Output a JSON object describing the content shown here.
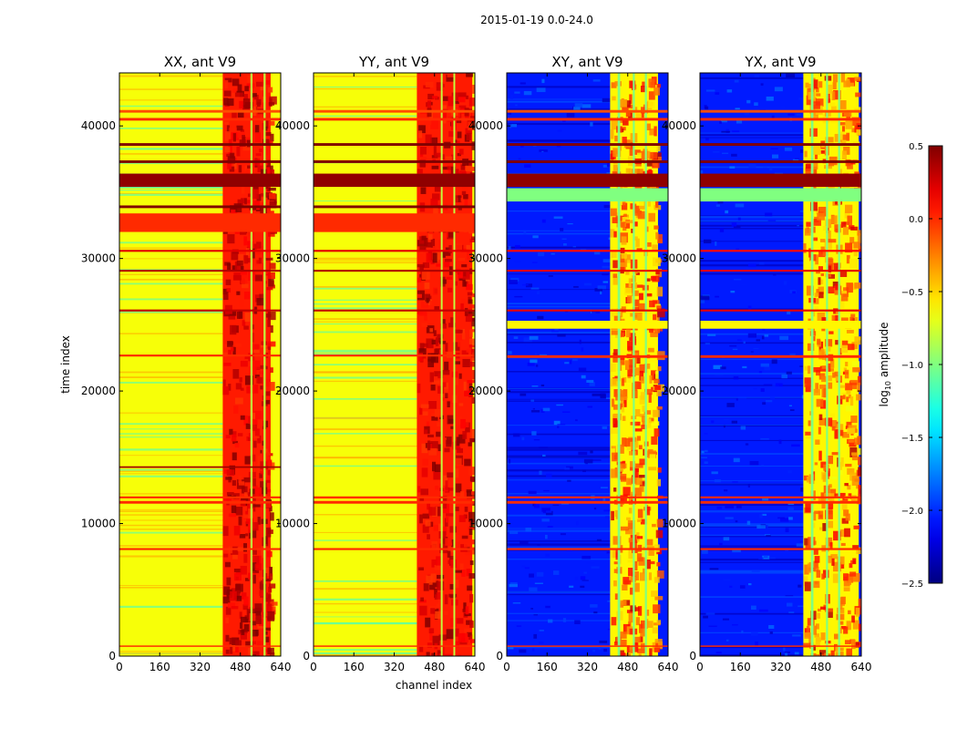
{
  "figure_title": "2015-01-19 0.0-24.0",
  "colors": {
    "spine": "#000000",
    "background": "#ffffff"
  },
  "chart_data": {
    "type": "heatmap",
    "colormap": "jet",
    "colorbar": {
      "label": "log10 amplitude",
      "label_base": "log",
      "label_sub": "10",
      "label_rest": " amplitude",
      "range": [
        -2.5,
        0.5
      ],
      "ticks": [
        0.5,
        0.0,
        -0.5,
        -1.0,
        -1.5,
        -2.0,
        -2.5
      ],
      "tick_labels": [
        "0.5",
        "0.0",
        "−0.5",
        "−1.0",
        "−1.5",
        "−2.0",
        "−2.5"
      ]
    },
    "xlabel": "channel index",
    "ylabel": "time index",
    "xlim": [
      0,
      640
    ],
    "ylim": [
      0,
      44000
    ],
    "xticks": [
      0,
      160,
      320,
      480,
      640
    ],
    "xtick_labels": [
      "0",
      "160",
      "320",
      "480",
      "640"
    ],
    "yticks": [
      0,
      10000,
      20000,
      30000,
      40000
    ],
    "ytick_labels": [
      "0",
      "10000",
      "20000",
      "30000",
      "40000"
    ],
    "panels": [
      {
        "title": "XX, ant V9",
        "base_level": -0.65,
        "active_channels": [
          410,
          600
        ],
        "active_level": 0.05,
        "gaps": [
          [
            520,
            528
          ],
          [
            572,
            580
          ]
        ],
        "cross_pol": false,
        "bands": [
          {
            "time": [
              32000,
              33400
            ],
            "level": 0.0
          },
          {
            "time": [
              35400,
              36400
            ],
            "level": 0.45
          },
          {
            "time": [
              37200,
              37400
            ],
            "level": 0.5
          },
          {
            "time": [
              38500,
              38700
            ],
            "level": 0.5
          },
          {
            "time": [
              33800,
              34000
            ],
            "level": 0.5
          },
          {
            "time": [
              40400,
              40600
            ],
            "level": 0.0
          },
          {
            "time": [
              41000,
              41200
            ],
            "level": -0.1
          },
          {
            "time": [
              11500,
              11700
            ],
            "level": 0.0
          },
          {
            "time": [
              11900,
              12050
            ],
            "level": 0.0
          },
          {
            "time": [
              26000,
              26150
            ],
            "level": 0.3
          },
          {
            "time": [
              29000,
              29150
            ],
            "level": 0.35
          },
          {
            "time": [
              30500,
              30650
            ],
            "level": 0.2
          },
          {
            "time": [
              22600,
              22750
            ],
            "level": 0.0
          },
          {
            "time": [
              8000,
              8150
            ],
            "level": 0.0
          },
          {
            "time": [
              700,
              800
            ],
            "level": 0.0
          },
          {
            "time": [
              14200,
              14320
            ],
            "level": 0.4
          }
        ]
      },
      {
        "title": "YY, ant V9",
        "base_level": -0.65,
        "active_channels": [
          410,
          630
        ],
        "active_level": 0.05,
        "gaps": [
          [
            505,
            512
          ],
          [
            555,
            562
          ]
        ],
        "cross_pol": false,
        "bands": [
          {
            "time": [
              32000,
              33400
            ],
            "level": 0.0
          },
          {
            "time": [
              35400,
              36400
            ],
            "level": 0.45
          },
          {
            "time": [
              37200,
              37400
            ],
            "level": 0.5
          },
          {
            "time": [
              38500,
              38700
            ],
            "level": 0.5
          },
          {
            "time": [
              33800,
              34000
            ],
            "level": 0.5
          },
          {
            "time": [
              40400,
              40600
            ],
            "level": 0.0
          },
          {
            "time": [
              41000,
              41200
            ],
            "level": -0.1
          },
          {
            "time": [
              11500,
              11700
            ],
            "level": 0.0
          },
          {
            "time": [
              11900,
              12050
            ],
            "level": 0.0
          },
          {
            "time": [
              26000,
              26150
            ],
            "level": 0.3
          },
          {
            "time": [
              29000,
              29150
            ],
            "level": 0.35
          },
          {
            "time": [
              30500,
              30650
            ],
            "level": 0.2
          },
          {
            "time": [
              22600,
              22750
            ],
            "level": 0.0
          },
          {
            "time": [
              8000,
              8150
            ],
            "level": 0.0
          },
          {
            "time": [
              700,
              800
            ],
            "level": 0.0
          }
        ]
      },
      {
        "title": "XY, ant V9",
        "base_level": -2.05,
        "active_channels": [
          410,
          600
        ],
        "active_level": -0.6,
        "gaps": [
          [
            440,
            450
          ],
          [
            500,
            508
          ],
          [
            548,
            556
          ]
        ],
        "cross_pol": true,
        "bands": [
          {
            "time": [
              35400,
              36400
            ],
            "level": 0.45
          },
          {
            "time": [
              34300,
              35300
            ],
            "level": -1.0
          },
          {
            "time": [
              37200,
              37400
            ],
            "level": 0.5
          },
          {
            "time": [
              38500,
              38700
            ],
            "level": 0.5
          },
          {
            "time": [
              40400,
              40600
            ],
            "level": 0.0
          },
          {
            "time": [
              41000,
              41200
            ],
            "level": -0.1
          },
          {
            "time": [
              24700,
              25300
            ],
            "level": -0.6
          },
          {
            "time": [
              22500,
              22700
            ],
            "level": 0.0
          },
          {
            "time": [
              11500,
              11700
            ],
            "level": 0.0
          },
          {
            "time": [
              11900,
              12050
            ],
            "level": 0.0
          },
          {
            "time": [
              26000,
              26150
            ],
            "level": 0.2
          },
          {
            "time": [
              29000,
              29150
            ],
            "level": 0.2
          },
          {
            "time": [
              30500,
              30650
            ],
            "level": 0.1
          },
          {
            "time": [
              8000,
              8150
            ],
            "level": 0.0
          },
          {
            "time": [
              700,
              800
            ],
            "level": 0.0
          }
        ]
      },
      {
        "title": "YX, ant V9",
        "base_level": -2.05,
        "active_channels": [
          410,
          630
        ],
        "active_level": -0.6,
        "gaps": [
          [
            440,
            450
          ],
          [
            500,
            508
          ],
          [
            548,
            556
          ]
        ],
        "cross_pol": true,
        "bands": [
          {
            "time": [
              35400,
              36400
            ],
            "level": 0.45
          },
          {
            "time": [
              34300,
              35300
            ],
            "level": -1.0
          },
          {
            "time": [
              37200,
              37400
            ],
            "level": 0.5
          },
          {
            "time": [
              38500,
              38700
            ],
            "level": 0.5
          },
          {
            "time": [
              40400,
              40600
            ],
            "level": 0.0
          },
          {
            "time": [
              41000,
              41200
            ],
            "level": -0.1
          },
          {
            "time": [
              24700,
              25300
            ],
            "level": -0.6
          },
          {
            "time": [
              22500,
              22700
            ],
            "level": 0.0
          },
          {
            "time": [
              11500,
              11700
            ],
            "level": 0.0
          },
          {
            "time": [
              11900,
              12050
            ],
            "level": 0.0
          },
          {
            "time": [
              26000,
              26150
            ],
            "level": 0.2
          },
          {
            "time": [
              29000,
              29150
            ],
            "level": 0.2
          },
          {
            "time": [
              30500,
              30650
            ],
            "level": 0.1
          },
          {
            "time": [
              8000,
              8150
            ],
            "level": 0.0
          },
          {
            "time": [
              700,
              800
            ],
            "level": 0.0
          }
        ]
      }
    ]
  }
}
